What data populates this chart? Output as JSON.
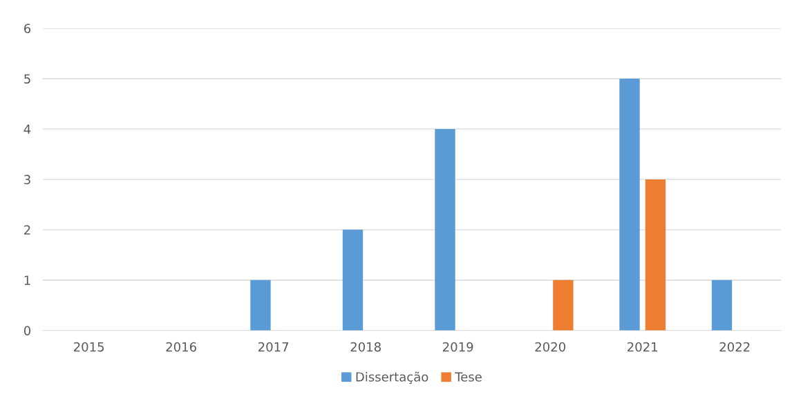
{
  "chart_data": {
    "type": "bar",
    "categories": [
      "2015",
      "2016",
      "2017",
      "2018",
      "2019",
      "2020",
      "2021",
      "2022"
    ],
    "series": [
      {
        "name": "Dissertação",
        "color": "#5b9bd5",
        "values": [
          0,
          0,
          1,
          2,
          4,
          0,
          5,
          1
        ]
      },
      {
        "name": "Tese",
        "color": "#ed7d31",
        "values": [
          0,
          0,
          0,
          0,
          0,
          1,
          3,
          0
        ]
      }
    ],
    "ylim": [
      0,
      6
    ],
    "yticks": [
      0,
      1,
      2,
      3,
      4,
      5,
      6
    ],
    "grid": "y",
    "legend": "bottom"
  }
}
